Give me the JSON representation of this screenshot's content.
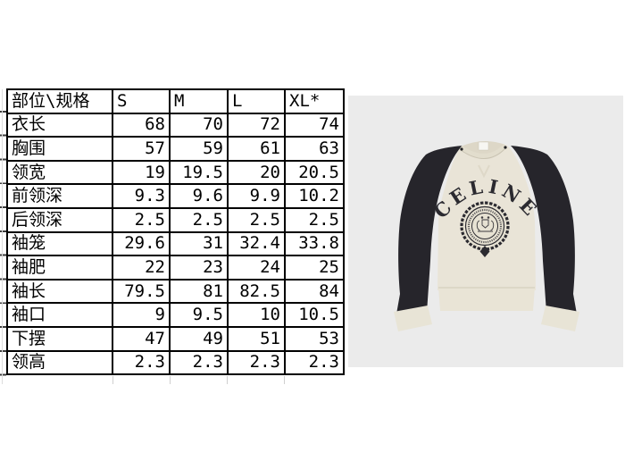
{
  "size_chart": {
    "header": {
      "part_spec_label": "部位\\规格",
      "sizes": [
        "S",
        "M",
        "L",
        "XL*"
      ]
    },
    "rows": [
      {
        "label": "衣长",
        "values": [
          "68",
          "70",
          "72",
          "74"
        ]
      },
      {
        "label": "胸围",
        "values": [
          "57",
          "59",
          "61",
          "63"
        ]
      },
      {
        "label": "领宽",
        "values": [
          "19",
          "19.5",
          "20",
          "20.5"
        ]
      },
      {
        "label": "前领深",
        "values": [
          "9.3",
          "9.6",
          "9.9",
          "10.2"
        ]
      },
      {
        "label": "后领深",
        "values": [
          "2.5",
          "2.5",
          "2.5",
          "2.5"
        ]
      },
      {
        "label": "袖笼",
        "values": [
          "29.6",
          "31",
          "32.4",
          "33.8"
        ]
      },
      {
        "label": "袖肥",
        "values": [
          "22",
          "23",
          "24",
          "25"
        ]
      },
      {
        "label": "袖长",
        "values": [
          "79.5",
          "81",
          "82.5",
          "84"
        ]
      },
      {
        "label": "袖口",
        "values": [
          "9",
          "9.5",
          "10",
          "10.5"
        ]
      },
      {
        "label": "下摆",
        "values": [
          "47",
          "49",
          "51",
          "53"
        ]
      },
      {
        "label": "领高",
        "values": [
          "2.3",
          "2.3",
          "2.3",
          "2.3"
        ]
      }
    ]
  },
  "product": {
    "brand_text": "CELINE",
    "colors": {
      "photo_background": "#ebebeb",
      "body": "#e9e4d7",
      "sleeves": "#26252b",
      "cuffs": "#e8e4d6",
      "print": "#2b2a30"
    }
  }
}
